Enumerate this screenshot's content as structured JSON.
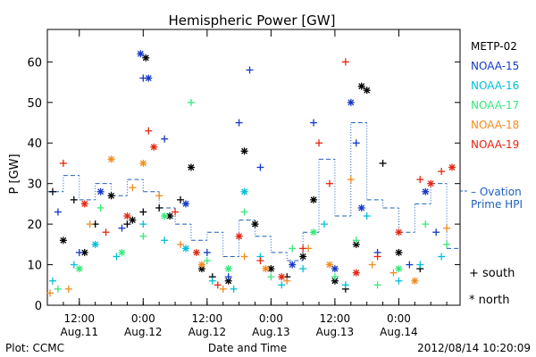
{
  "chart_data": {
    "type": "scatter",
    "title": "Hemispheric Power [GW]",
    "xlabel": "Date and Time",
    "ylabel": "P [GW]",
    "xlim": [
      "2012-08-11 06:00",
      "2012-08-14 11:30"
    ],
    "ylim": [
      0,
      68
    ],
    "yticks": [
      0,
      10,
      20,
      30,
      40,
      50,
      60
    ],
    "xticks": [
      {
        "time": "2012-08-11 12:00",
        "line1": "12:00",
        "line2": "Aug.11"
      },
      {
        "time": "2012-08-12 00:00",
        "line1": "0:00",
        "line2": "Aug.12"
      },
      {
        "time": "2012-08-12 12:00",
        "line1": "12:00",
        "line2": "Aug.12"
      },
      {
        "time": "2012-08-13 00:00",
        "line1": "0:00",
        "line2": "Aug.13"
      },
      {
        "time": "2012-08-13 12:00",
        "line1": "12:00",
        "line2": "Aug.13"
      },
      {
        "time": "2012-08-14 00:00",
        "line1": "0:00",
        "line2": "Aug.14"
      }
    ],
    "legend_placement": "right",
    "marker_legend": [
      {
        "symbol": "+",
        "label": "south"
      },
      {
        "symbol": "*",
        "label": "north"
      }
    ],
    "model_legend": {
      "line1": "– Ovation",
      "line2": "Prime HPI",
      "color": "#1f5fbf"
    },
    "footer": {
      "left": "Plot: CCMC",
      "right": "2012/08/14 10:20:09"
    },
    "series": [
      {
        "name": "METP-02",
        "color": "#000000",
        "points": [
          [
            "2012-08-11 07:00",
            28,
            "+"
          ],
          [
            "2012-08-11 09:00",
            16,
            "*"
          ],
          [
            "2012-08-11 11:00",
            26,
            "+"
          ],
          [
            "2012-08-11 13:00",
            13,
            "*"
          ],
          [
            "2012-08-11 15:00",
            20,
            "+"
          ],
          [
            "2012-08-11 18:00",
            27,
            "*"
          ],
          [
            "2012-08-11 21:00",
            20,
            "+"
          ],
          [
            "2012-08-11 22:00",
            21,
            "*"
          ],
          [
            "2012-08-12 00:00",
            23,
            "+"
          ],
          [
            "2012-08-12 00:30",
            61,
            "*"
          ],
          [
            "2012-08-12 03:00",
            24,
            "+"
          ],
          [
            "2012-08-12 05:00",
            22,
            "*"
          ],
          [
            "2012-08-12 07:00",
            26,
            "+"
          ],
          [
            "2012-08-12 09:00",
            34,
            "*"
          ],
          [
            "2012-08-12 11:00",
            9,
            "*"
          ],
          [
            "2012-08-12 13:00",
            7,
            "+"
          ],
          [
            "2012-08-12 16:00",
            6,
            "*"
          ],
          [
            "2012-08-12 19:00",
            38,
            "*"
          ],
          [
            "2012-08-12 21:00",
            20,
            "*"
          ],
          [
            "2012-08-13 00:00",
            9,
            "*"
          ],
          [
            "2012-08-13 03:00",
            7,
            "+"
          ],
          [
            "2012-08-13 06:00",
            12,
            "*"
          ],
          [
            "2012-08-13 08:00",
            26,
            "*"
          ],
          [
            "2012-08-13 12:00",
            6,
            "*"
          ],
          [
            "2012-08-13 14:00",
            4,
            "+"
          ],
          [
            "2012-08-13 16:00",
            15,
            "*"
          ],
          [
            "2012-08-13 17:00",
            54,
            "*"
          ],
          [
            "2012-08-13 18:00",
            53,
            "*"
          ],
          [
            "2012-08-13 21:00",
            35,
            "+"
          ],
          [
            "2012-08-14 00:00",
            13,
            "*"
          ],
          [
            "2012-08-14 04:00",
            9,
            "+"
          ]
        ]
      },
      {
        "name": "NOAA-15",
        "color": "#1538c8",
        "points": [
          [
            "2012-08-11 08:00",
            23,
            "+"
          ],
          [
            "2012-08-11 12:00",
            13,
            "+"
          ],
          [
            "2012-08-11 16:00",
            28,
            "*"
          ],
          [
            "2012-08-11 20:00",
            19,
            "+"
          ],
          [
            "2012-08-11 23:30",
            62,
            "*"
          ],
          [
            "2012-08-12 00:00",
            56,
            "+"
          ],
          [
            "2012-08-12 01:00",
            56,
            "*"
          ],
          [
            "2012-08-12 04:00",
            41,
            "+"
          ],
          [
            "2012-08-12 08:00",
            25,
            "*"
          ],
          [
            "2012-08-12 12:00",
            13,
            "+"
          ],
          [
            "2012-08-12 16:00",
            7,
            "+"
          ],
          [
            "2012-08-12 18:00",
            45,
            "+"
          ],
          [
            "2012-08-12 20:00",
            58,
            "+"
          ],
          [
            "2012-08-12 22:00",
            34,
            "+"
          ],
          [
            "2012-08-13 04:00",
            10,
            "*"
          ],
          [
            "2012-08-13 08:00",
            45,
            "+"
          ],
          [
            "2012-08-13 12:00",
            9,
            "*"
          ],
          [
            "2012-08-13 15:00",
            50,
            "*"
          ],
          [
            "2012-08-13 16:00",
            40,
            "+"
          ],
          [
            "2012-08-13 17:00",
            24,
            "*"
          ],
          [
            "2012-08-13 20:00",
            13,
            "+"
          ],
          [
            "2012-08-14 02:00",
            10,
            "+"
          ],
          [
            "2012-08-14 05:00",
            28,
            "*"
          ],
          [
            "2012-08-14 07:00",
            18,
            "+"
          ]
        ]
      },
      {
        "name": "NOAA-16",
        "color": "#00bfd8",
        "points": [
          [
            "2012-08-11 07:00",
            6,
            "+"
          ],
          [
            "2012-08-11 11:00",
            10,
            "+"
          ],
          [
            "2012-08-11 15:00",
            15,
            "*"
          ],
          [
            "2012-08-11 19:00",
            12,
            "+"
          ],
          [
            "2012-08-12 00:00",
            20,
            "+"
          ],
          [
            "2012-08-12 04:00",
            16,
            "+"
          ],
          [
            "2012-08-12 08:00",
            14,
            "*"
          ],
          [
            "2012-08-12 13:00",
            6,
            "+"
          ],
          [
            "2012-08-12 17:00",
            4,
            "+"
          ],
          [
            "2012-08-12 19:00",
            28,
            "*"
          ],
          [
            "2012-08-12 22:00",
            12,
            "+"
          ],
          [
            "2012-08-13 02:00",
            5,
            "+"
          ],
          [
            "2012-08-13 06:00",
            9,
            "+"
          ],
          [
            "2012-08-13 10:00",
            20,
            "+"
          ],
          [
            "2012-08-13 14:00",
            5,
            "+"
          ],
          [
            "2012-08-13 18:00",
            22,
            "+"
          ],
          [
            "2012-08-14 00:00",
            6,
            "+"
          ],
          [
            "2012-08-14 04:00",
            10,
            "+"
          ],
          [
            "2012-08-14 08:00",
            12,
            "+"
          ]
        ]
      },
      {
        "name": "NOAA-17",
        "color": "#37e87c",
        "points": [
          [
            "2012-08-11 08:00",
            4,
            "+"
          ],
          [
            "2012-08-11 12:00",
            9,
            "*"
          ],
          [
            "2012-08-11 16:00",
            24,
            "+"
          ],
          [
            "2012-08-11 20:00",
            13,
            "*"
          ],
          [
            "2012-08-12 00:00",
            17,
            "+"
          ],
          [
            "2012-08-12 04:00",
            22,
            "*"
          ],
          [
            "2012-08-12 09:00",
            50,
            "+"
          ],
          [
            "2012-08-12 12:00",
            11,
            "+"
          ],
          [
            "2012-08-12 16:00",
            9,
            "*"
          ],
          [
            "2012-08-12 19:00",
            23,
            "+"
          ],
          [
            "2012-08-13 00:00",
            7,
            "+"
          ],
          [
            "2012-08-13 04:00",
            14,
            "+"
          ],
          [
            "2012-08-13 08:00",
            18,
            "*"
          ],
          [
            "2012-08-13 12:00",
            7,
            "+"
          ],
          [
            "2012-08-13 16:00",
            16,
            "+"
          ],
          [
            "2012-08-13 20:00",
            5,
            "+"
          ],
          [
            "2012-08-14 00:00",
            9,
            "*"
          ],
          [
            "2012-08-14 05:00",
            20,
            "+"
          ],
          [
            "2012-08-14 09:00",
            15,
            "+"
          ]
        ]
      },
      {
        "name": "NOAA-18",
        "color": "#f08c1e",
        "points": [
          [
            "2012-08-11 06:30",
            3,
            "+"
          ],
          [
            "2012-08-11 10:00",
            4,
            "+"
          ],
          [
            "2012-08-11 14:00",
            20,
            "+"
          ],
          [
            "2012-08-11 18:00",
            36,
            "*"
          ],
          [
            "2012-08-11 22:00",
            29,
            "+"
          ],
          [
            "2012-08-12 00:00",
            35,
            "*"
          ],
          [
            "2012-08-12 03:00",
            27,
            "+"
          ],
          [
            "2012-08-12 07:00",
            15,
            "+"
          ],
          [
            "2012-08-12 11:00",
            10,
            "*"
          ],
          [
            "2012-08-12 15:00",
            4,
            "+"
          ],
          [
            "2012-08-12 19:00",
            12,
            "+"
          ],
          [
            "2012-08-12 23:00",
            9,
            "*"
          ],
          [
            "2012-08-13 03:00",
            6,
            "+"
          ],
          [
            "2012-08-13 07:00",
            14,
            "+"
          ],
          [
            "2012-08-13 11:00",
            10,
            "*"
          ],
          [
            "2012-08-13 15:00",
            31,
            "+"
          ],
          [
            "2012-08-13 19:00",
            10,
            "+"
          ],
          [
            "2012-08-13 23:00",
            8,
            "+"
          ],
          [
            "2012-08-14 03:00",
            6,
            "*"
          ],
          [
            "2012-08-14 09:00",
            19,
            "+"
          ]
        ]
      },
      {
        "name": "NOAA-19",
        "color": "#e3260f",
        "points": [
          [
            "2012-08-11 09:00",
            35,
            "+"
          ],
          [
            "2012-08-11 13:00",
            25,
            "*"
          ],
          [
            "2012-08-11 17:00",
            18,
            "+"
          ],
          [
            "2012-08-11 21:00",
            22,
            "*"
          ],
          [
            "2012-08-12 01:00",
            43,
            "+"
          ],
          [
            "2012-08-12 02:00",
            39,
            "*"
          ],
          [
            "2012-08-12 06:00",
            23,
            "+"
          ],
          [
            "2012-08-12 10:00",
            13,
            "*"
          ],
          [
            "2012-08-12 14:00",
            5,
            "+"
          ],
          [
            "2012-08-12 18:00",
            17,
            "*"
          ],
          [
            "2012-08-12 22:00",
            11,
            "+"
          ],
          [
            "2012-08-13 02:00",
            7,
            "*"
          ],
          [
            "2012-08-13 06:00",
            14,
            "+"
          ],
          [
            "2012-08-13 09:00",
            40,
            "+"
          ],
          [
            "2012-08-13 11:00",
            30,
            "+"
          ],
          [
            "2012-08-13 14:00",
            60,
            "+"
          ],
          [
            "2012-08-13 16:00",
            8,
            "*"
          ],
          [
            "2012-08-13 20:00",
            12,
            "+"
          ],
          [
            "2012-08-14 00:00",
            18,
            "*"
          ],
          [
            "2012-08-14 04:00",
            31,
            "+"
          ],
          [
            "2012-08-14 06:00",
            30,
            "*"
          ],
          [
            "2012-08-14 08:00",
            33,
            "+"
          ],
          [
            "2012-08-14 10:00",
            34,
            "*"
          ]
        ]
      }
    ],
    "ovation_steps": [
      [
        "2012-08-11 06:00",
        28
      ],
      [
        "2012-08-11 09:00",
        32
      ],
      [
        "2012-08-11 12:00",
        26
      ],
      [
        "2012-08-11 15:00",
        30
      ],
      [
        "2012-08-11 18:00",
        27
      ],
      [
        "2012-08-11 21:00",
        31
      ],
      [
        "2012-08-12 00:00",
        28
      ],
      [
        "2012-08-12 03:00",
        24
      ],
      [
        "2012-08-12 06:00",
        20
      ],
      [
        "2012-08-12 09:00",
        16
      ],
      [
        "2012-08-12 12:00",
        18
      ],
      [
        "2012-08-12 15:00",
        12
      ],
      [
        "2012-08-12 18:00",
        21
      ],
      [
        "2012-08-12 21:00",
        17
      ],
      [
        "2012-08-13 00:00",
        13
      ],
      [
        "2012-08-13 03:00",
        11
      ],
      [
        "2012-08-13 06:00",
        18
      ],
      [
        "2012-08-13 09:00",
        36
      ],
      [
        "2012-08-13 12:00",
        22
      ],
      [
        "2012-08-13 15:00",
        45
      ],
      [
        "2012-08-13 18:00",
        26
      ],
      [
        "2012-08-13 21:00",
        24
      ],
      [
        "2012-08-14 00:00",
        18
      ],
      [
        "2012-08-14 03:00",
        25
      ],
      [
        "2012-08-14 06:00",
        30
      ],
      [
        "2012-08-14 09:00",
        14
      ],
      [
        "2012-08-14 11:30",
        14
      ]
    ]
  }
}
